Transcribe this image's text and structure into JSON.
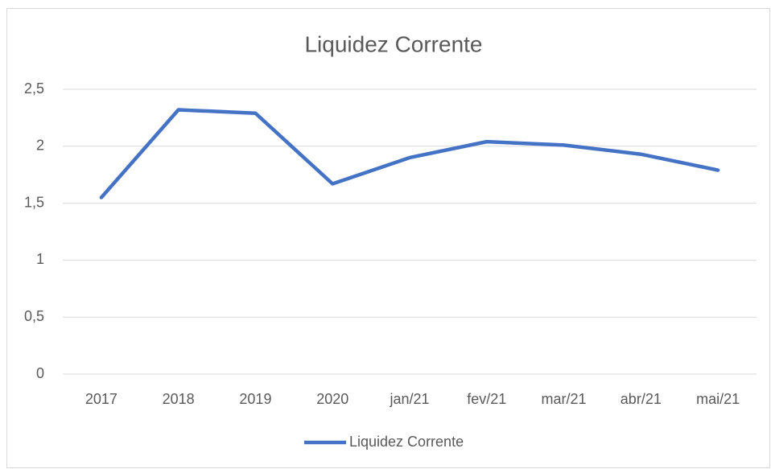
{
  "chart_data": {
    "type": "line",
    "title": "Liquidez Corrente",
    "categories": [
      "2017",
      "2018",
      "2019",
      "2020",
      "jan/21",
      "fev/21",
      "mar/21",
      "abr/21",
      "mai/21"
    ],
    "series": [
      {
        "name": "Liquidez Corrente",
        "color": "#4472c4",
        "values": [
          1.55,
          2.32,
          2.29,
          1.67,
          1.9,
          2.04,
          2.01,
          1.93,
          1.79
        ]
      }
    ],
    "ylim": [
      0,
      2.5
    ],
    "yticks": [
      0,
      {
        "value": 0.5,
        "label": "0,5"
      },
      1,
      {
        "value": 1.5,
        "label": "1,5"
      },
      2,
      {
        "value": 2.5,
        "label": "2,5"
      }
    ],
    "grid": true,
    "legend": "bottom"
  }
}
